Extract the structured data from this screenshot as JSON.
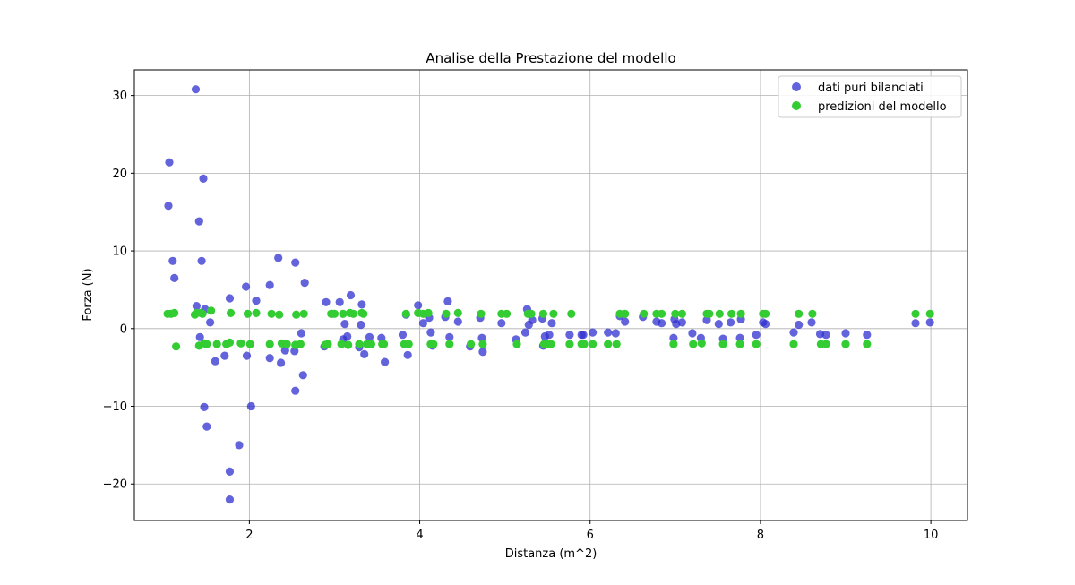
{
  "chart_data": {
    "type": "scatter",
    "title": "Analise della Prestazione del modello",
    "xlabel": "Distanza (m^2)",
    "ylabel": "Forza (N)",
    "xlim": [
      0.65,
      10.43
    ],
    "ylim": [
      -24.7,
      33.3
    ],
    "xticks": [
      2,
      4,
      6,
      8,
      10
    ],
    "yticks": [
      -20,
      -10,
      0,
      10,
      20,
      30
    ],
    "xtick_labels": [
      "2",
      "4",
      "6",
      "8",
      "10"
    ],
    "ytick_labels": [
      "−20",
      "−10",
      "0",
      "10",
      "20",
      "30"
    ],
    "grid": true,
    "legend_position": "top-right",
    "series": [
      {
        "name": "dati puri bilanciati",
        "color": "#2f2fcf",
        "alpha": 0.75,
        "points": [
          [
            1.05,
            15.8
          ],
          [
            1.06,
            21.4
          ],
          [
            1.1,
            8.7
          ],
          [
            1.12,
            6.5
          ],
          [
            1.37,
            30.8
          ],
          [
            1.38,
            2.9
          ],
          [
            1.41,
            13.8
          ],
          [
            1.42,
            -1.1
          ],
          [
            1.44,
            8.7
          ],
          [
            1.46,
            19.3
          ],
          [
            1.47,
            -10.1
          ],
          [
            1.48,
            2.5
          ],
          [
            1.5,
            -12.6
          ],
          [
            1.54,
            0.8
          ],
          [
            1.6,
            -4.2
          ],
          [
            1.71,
            -3.5
          ],
          [
            1.77,
            3.9
          ],
          [
            1.77,
            -18.4
          ],
          [
            1.77,
            -22.0
          ],
          [
            1.88,
            -15.0
          ],
          [
            1.96,
            5.4
          ],
          [
            1.97,
            -3.5
          ],
          [
            2.02,
            -10.0
          ],
          [
            2.08,
            3.6
          ],
          [
            2.24,
            5.6
          ],
          [
            2.24,
            -3.8
          ],
          [
            2.34,
            9.1
          ],
          [
            2.37,
            -4.4
          ],
          [
            2.42,
            -2.8
          ],
          [
            2.53,
            -2.9
          ],
          [
            2.54,
            8.5
          ],
          [
            2.54,
            -8.0
          ],
          [
            2.61,
            -0.6
          ],
          [
            2.63,
            -6.0
          ],
          [
            2.65,
            5.9
          ],
          [
            2.88,
            -2.3
          ],
          [
            2.9,
            3.4
          ],
          [
            2.97,
            1.9
          ],
          [
            3.06,
            3.4
          ],
          [
            3.1,
            -1.4
          ],
          [
            3.12,
            0.6
          ],
          [
            3.15,
            -1.0
          ],
          [
            3.19,
            4.3
          ],
          [
            3.29,
            -2.4
          ],
          [
            3.31,
            0.5
          ],
          [
            3.32,
            3.1
          ],
          [
            3.35,
            -3.3
          ],
          [
            3.41,
            -1.1
          ],
          [
            3.55,
            -1.2
          ],
          [
            3.59,
            -4.3
          ],
          [
            3.8,
            -0.8
          ],
          [
            3.84,
            1.8
          ],
          [
            3.86,
            -3.4
          ],
          [
            3.98,
            3.0
          ],
          [
            4.04,
            0.7
          ],
          [
            4.11,
            1.4
          ],
          [
            4.13,
            -0.5
          ],
          [
            4.15,
            -2.2
          ],
          [
            4.3,
            1.5
          ],
          [
            4.33,
            3.5
          ],
          [
            4.35,
            -1.1
          ],
          [
            4.45,
            0.9
          ],
          [
            4.59,
            -2.3
          ],
          [
            4.71,
            1.4
          ],
          [
            4.73,
            -1.2
          ],
          [
            4.74,
            -3.0
          ],
          [
            4.96,
            0.7
          ],
          [
            5.13,
            -1.4
          ],
          [
            5.24,
            -0.5
          ],
          [
            5.26,
            2.5
          ],
          [
            5.28,
            0.5
          ],
          [
            5.32,
            1.1
          ],
          [
            5.44,
            1.3
          ],
          [
            5.45,
            -2.2
          ],
          [
            5.47,
            -1.0
          ],
          [
            5.52,
            -0.8
          ],
          [
            5.55,
            0.7
          ],
          [
            5.76,
            -0.8
          ],
          [
            5.9,
            -0.8
          ],
          [
            5.92,
            -0.8
          ],
          [
            6.03,
            -0.5
          ],
          [
            6.21,
            -0.5
          ],
          [
            6.3,
            -0.6
          ],
          [
            6.35,
            1.6
          ],
          [
            6.41,
            0.9
          ],
          [
            6.62,
            1.5
          ],
          [
            6.78,
            0.9
          ],
          [
            6.84,
            0.7
          ],
          [
            6.98,
            -1.2
          ],
          [
            6.99,
            1.2
          ],
          [
            7.01,
            0.6
          ],
          [
            7.08,
            0.8
          ],
          [
            7.2,
            -0.6
          ],
          [
            7.3,
            -1.2
          ],
          [
            7.37,
            1.1
          ],
          [
            7.51,
            0.6
          ],
          [
            7.56,
            -1.3
          ],
          [
            7.65,
            0.8
          ],
          [
            7.76,
            -1.2
          ],
          [
            7.77,
            1.2
          ],
          [
            7.95,
            -0.8
          ],
          [
            8.03,
            0.8
          ],
          [
            8.06,
            0.6
          ],
          [
            8.39,
            -0.5
          ],
          [
            8.45,
            0.5
          ],
          [
            8.6,
            0.8
          ],
          [
            8.7,
            -0.7
          ],
          [
            8.77,
            -0.8
          ],
          [
            9.0,
            -0.6
          ],
          [
            9.25,
            -0.8
          ],
          [
            9.82,
            0.7
          ],
          [
            9.99,
            0.8
          ]
        ]
      },
      {
        "name": "predizioni del modello",
        "color": "#33cc33",
        "alpha": 1.0,
        "points": [
          [
            1.04,
            1.9
          ],
          [
            1.08,
            1.9
          ],
          [
            1.12,
            2.0
          ],
          [
            1.14,
            -2.3
          ],
          [
            1.36,
            1.8
          ],
          [
            1.38,
            2.0
          ],
          [
            1.41,
            -2.2
          ],
          [
            1.43,
            2.0
          ],
          [
            1.45,
            1.9
          ],
          [
            1.47,
            -1.9
          ],
          [
            1.5,
            -2.0
          ],
          [
            1.55,
            2.3
          ],
          [
            1.62,
            -2.0
          ],
          [
            1.73,
            -2.0
          ],
          [
            1.77,
            -1.8
          ],
          [
            1.78,
            2.0
          ],
          [
            1.9,
            -1.9
          ],
          [
            1.98,
            1.9
          ],
          [
            2.01,
            -2.0
          ],
          [
            2.08,
            2.0
          ],
          [
            2.24,
            -2.0
          ],
          [
            2.26,
            1.9
          ],
          [
            2.35,
            1.8
          ],
          [
            2.38,
            -1.9
          ],
          [
            2.44,
            -2.0
          ],
          [
            2.54,
            -2.1
          ],
          [
            2.55,
            1.8
          ],
          [
            2.6,
            -2.0
          ],
          [
            2.64,
            1.9
          ],
          [
            2.89,
            -2.1
          ],
          [
            2.92,
            -2.0
          ],
          [
            2.96,
            1.9
          ],
          [
            3.0,
            1.9
          ],
          [
            3.08,
            -2.0
          ],
          [
            3.1,
            1.9
          ],
          [
            3.16,
            -2.1
          ],
          [
            3.18,
            2.0
          ],
          [
            3.22,
            1.9
          ],
          [
            3.29,
            -2.0
          ],
          [
            3.32,
            2.0
          ],
          [
            3.34,
            1.9
          ],
          [
            3.38,
            -2.0
          ],
          [
            3.43,
            -2.0
          ],
          [
            3.56,
            -2.0
          ],
          [
            3.58,
            -2.0
          ],
          [
            3.82,
            -2.0
          ],
          [
            3.84,
            1.9
          ],
          [
            3.87,
            -2.0
          ],
          [
            3.98,
            2.0
          ],
          [
            4.04,
            1.9
          ],
          [
            4.1,
            2.0
          ],
          [
            4.13,
            -2.0
          ],
          [
            4.16,
            -2.0
          ],
          [
            4.31,
            1.9
          ],
          [
            4.35,
            -2.0
          ],
          [
            4.45,
            2.0
          ],
          [
            4.6,
            -2.0
          ],
          [
            4.72,
            1.9
          ],
          [
            4.74,
            -2.0
          ],
          [
            4.96,
            1.9
          ],
          [
            5.02,
            1.9
          ],
          [
            5.14,
            -2.0
          ],
          [
            5.27,
            1.9
          ],
          [
            5.31,
            1.9
          ],
          [
            5.45,
            1.9
          ],
          [
            5.46,
            -2.0
          ],
          [
            5.49,
            -2.0
          ],
          [
            5.54,
            -2.0
          ],
          [
            5.57,
            1.9
          ],
          [
            5.76,
            -2.0
          ],
          [
            5.78,
            1.9
          ],
          [
            5.9,
            -2.0
          ],
          [
            5.93,
            -2.0
          ],
          [
            6.03,
            -2.0
          ],
          [
            6.21,
            -2.0
          ],
          [
            6.31,
            -2.0
          ],
          [
            6.35,
            1.9
          ],
          [
            6.41,
            1.9
          ],
          [
            6.63,
            1.9
          ],
          [
            6.78,
            1.9
          ],
          [
            6.84,
            1.9
          ],
          [
            6.98,
            -2.0
          ],
          [
            7.0,
            1.9
          ],
          [
            7.08,
            1.9
          ],
          [
            7.21,
            -2.0
          ],
          [
            7.31,
            -1.9
          ],
          [
            7.37,
            1.9
          ],
          [
            7.4,
            1.9
          ],
          [
            7.52,
            1.9
          ],
          [
            7.56,
            -2.0
          ],
          [
            7.66,
            1.9
          ],
          [
            7.76,
            -2.0
          ],
          [
            7.77,
            1.9
          ],
          [
            7.95,
            -2.0
          ],
          [
            8.03,
            1.9
          ],
          [
            8.06,
            1.9
          ],
          [
            8.39,
            -2.0
          ],
          [
            8.45,
            1.9
          ],
          [
            8.61,
            1.9
          ],
          [
            8.71,
            -2.0
          ],
          [
            8.77,
            -2.0
          ],
          [
            9.0,
            -2.0
          ],
          [
            9.25,
            -2.0
          ],
          [
            9.82,
            1.9
          ],
          [
            9.99,
            1.9
          ]
        ]
      }
    ]
  }
}
